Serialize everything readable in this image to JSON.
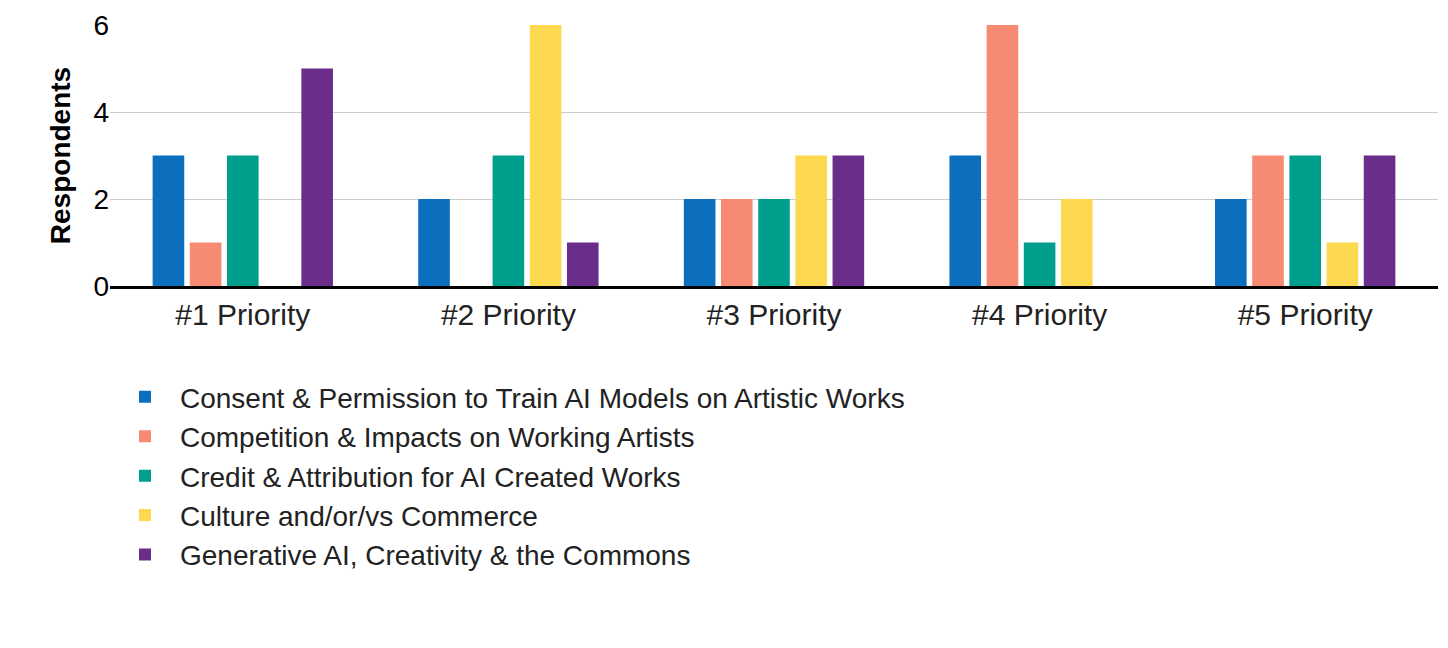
{
  "chart_data": {
    "type": "bar",
    "y_label": "Respondents",
    "categories": [
      "#1 Priority",
      "#2 Priority",
      "#3 Priority",
      "#4 Priority",
      "#5 Priority"
    ],
    "series": [
      {
        "name": "Consent & Permission to Train AI Models on Artistic Works",
        "color": "#0b6fbe",
        "values": [
          3,
          2,
          2,
          3,
          2
        ]
      },
      {
        "name": "Competition & Impacts on Working Artists",
        "color": "#f68a73",
        "values": [
          1,
          0,
          2,
          6,
          3
        ]
      },
      {
        "name": "Credit & Attribution for AI Created Works",
        "color": "#009e8d",
        "values": [
          3,
          3,
          2,
          1,
          3
        ]
      },
      {
        "name": "Culture and/or/vs Commerce",
        "color": "#fdd94f",
        "values": [
          0,
          6,
          3,
          2,
          1
        ]
      },
      {
        "name": "Generative AI, Creativity & the Commons",
        "color": "#6a2d8a",
        "values": [
          5,
          1,
          3,
          0,
          3
        ]
      }
    ],
    "ylim": [
      0,
      6
    ],
    "yticks": [
      0,
      2,
      4,
      6
    ],
    "grid": true,
    "legend": "bottom left"
  }
}
